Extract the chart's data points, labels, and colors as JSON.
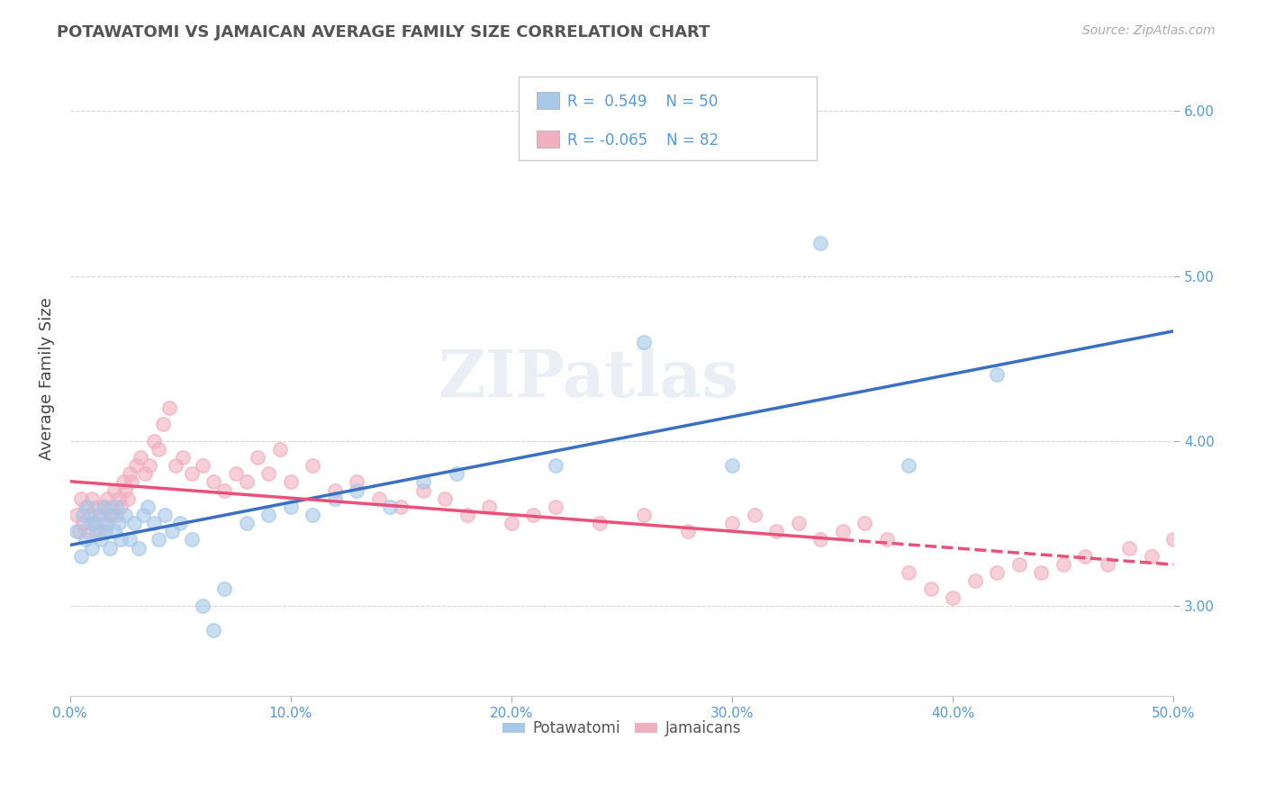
{
  "title": "POTAWATOMI VS JAMAICAN AVERAGE FAMILY SIZE CORRELATION CHART",
  "source": "Source: ZipAtlas.com",
  "ylabel": "Average Family Size",
  "xlim": [
    0.0,
    0.5
  ],
  "ylim": [
    2.45,
    6.3
  ],
  "yticks": [
    3.0,
    4.0,
    5.0,
    6.0
  ],
  "xticks": [
    0.0,
    0.1,
    0.2,
    0.3,
    0.4,
    0.5
  ],
  "xticklabels": [
    "0.0%",
    "10.0%",
    "20.0%",
    "30.0%",
    "40.0%",
    "50.0%"
  ],
  "blue_R": 0.549,
  "blue_N": 50,
  "pink_R": -0.065,
  "pink_N": 82,
  "blue_color": "#a8c8e8",
  "pink_color": "#f0b0c0",
  "blue_line_color": "#3a6fc4",
  "pink_line_color": "#e8527a",
  "legend_label_blue": "Potawatomi",
  "legend_label_pink": "Jamaicans",
  "watermark": "ZIPatlas",
  "background_color": "#ffffff",
  "grid_color": "#cccccc",
  "title_color": "#555555",
  "axis_label_color": "#5599dd",
  "blue_x": [
    0.003,
    0.005,
    0.006,
    0.007,
    0.008,
    0.009,
    0.01,
    0.011,
    0.012,
    0.013,
    0.014,
    0.015,
    0.016,
    0.017,
    0.018,
    0.019,
    0.02,
    0.021,
    0.022,
    0.023,
    0.025,
    0.027,
    0.029,
    0.031,
    0.033,
    0.035,
    0.038,
    0.04,
    0.043,
    0.046,
    0.05,
    0.055,
    0.06,
    0.065,
    0.07,
    0.08,
    0.09,
    0.1,
    0.11,
    0.12,
    0.13,
    0.145,
    0.16,
    0.175,
    0.22,
    0.26,
    0.3,
    0.34,
    0.38,
    0.42
  ],
  "blue_y": [
    3.45,
    3.3,
    3.55,
    3.4,
    3.6,
    3.5,
    3.35,
    3.5,
    3.45,
    3.55,
    3.4,
    3.6,
    3.45,
    3.5,
    3.35,
    3.55,
    3.45,
    3.6,
    3.5,
    3.4,
    3.55,
    3.4,
    3.5,
    3.35,
    3.55,
    3.6,
    3.5,
    3.4,
    3.55,
    3.45,
    3.5,
    3.4,
    3.0,
    2.85,
    3.1,
    3.5,
    3.55,
    3.6,
    3.55,
    3.65,
    3.7,
    3.6,
    3.75,
    3.8,
    3.85,
    4.6,
    3.85,
    5.2,
    3.85,
    4.4
  ],
  "pink_x": [
    0.003,
    0.004,
    0.005,
    0.006,
    0.007,
    0.008,
    0.009,
    0.01,
    0.011,
    0.012,
    0.013,
    0.014,
    0.015,
    0.016,
    0.017,
    0.018,
    0.019,
    0.02,
    0.021,
    0.022,
    0.023,
    0.024,
    0.025,
    0.026,
    0.027,
    0.028,
    0.03,
    0.032,
    0.034,
    0.036,
    0.038,
    0.04,
    0.042,
    0.045,
    0.048,
    0.051,
    0.055,
    0.06,
    0.065,
    0.07,
    0.075,
    0.08,
    0.085,
    0.09,
    0.095,
    0.1,
    0.11,
    0.12,
    0.13,
    0.14,
    0.15,
    0.16,
    0.17,
    0.18,
    0.19,
    0.2,
    0.21,
    0.22,
    0.24,
    0.26,
    0.28,
    0.3,
    0.31,
    0.32,
    0.33,
    0.34,
    0.35,
    0.36,
    0.37,
    0.38,
    0.39,
    0.4,
    0.41,
    0.42,
    0.43,
    0.44,
    0.45,
    0.46,
    0.47,
    0.48,
    0.49,
    0.5
  ],
  "pink_y": [
    3.55,
    3.45,
    3.65,
    3.5,
    3.6,
    3.45,
    3.55,
    3.65,
    3.5,
    3.6,
    3.45,
    3.55,
    3.6,
    3.5,
    3.65,
    3.55,
    3.6,
    3.7,
    3.55,
    3.65,
    3.6,
    3.75,
    3.7,
    3.65,
    3.8,
    3.75,
    3.85,
    3.9,
    3.8,
    3.85,
    4.0,
    3.95,
    4.1,
    4.2,
    3.85,
    3.9,
    3.8,
    3.85,
    3.75,
    3.7,
    3.8,
    3.75,
    3.9,
    3.8,
    3.95,
    3.75,
    3.85,
    3.7,
    3.75,
    3.65,
    3.6,
    3.7,
    3.65,
    3.55,
    3.6,
    3.5,
    3.55,
    3.6,
    3.5,
    3.55,
    3.45,
    3.5,
    3.55,
    3.45,
    3.5,
    3.4,
    3.45,
    3.5,
    3.4,
    3.2,
    3.1,
    3.05,
    3.15,
    3.2,
    3.25,
    3.2,
    3.25,
    3.3,
    3.25,
    3.35,
    3.3,
    3.4
  ]
}
